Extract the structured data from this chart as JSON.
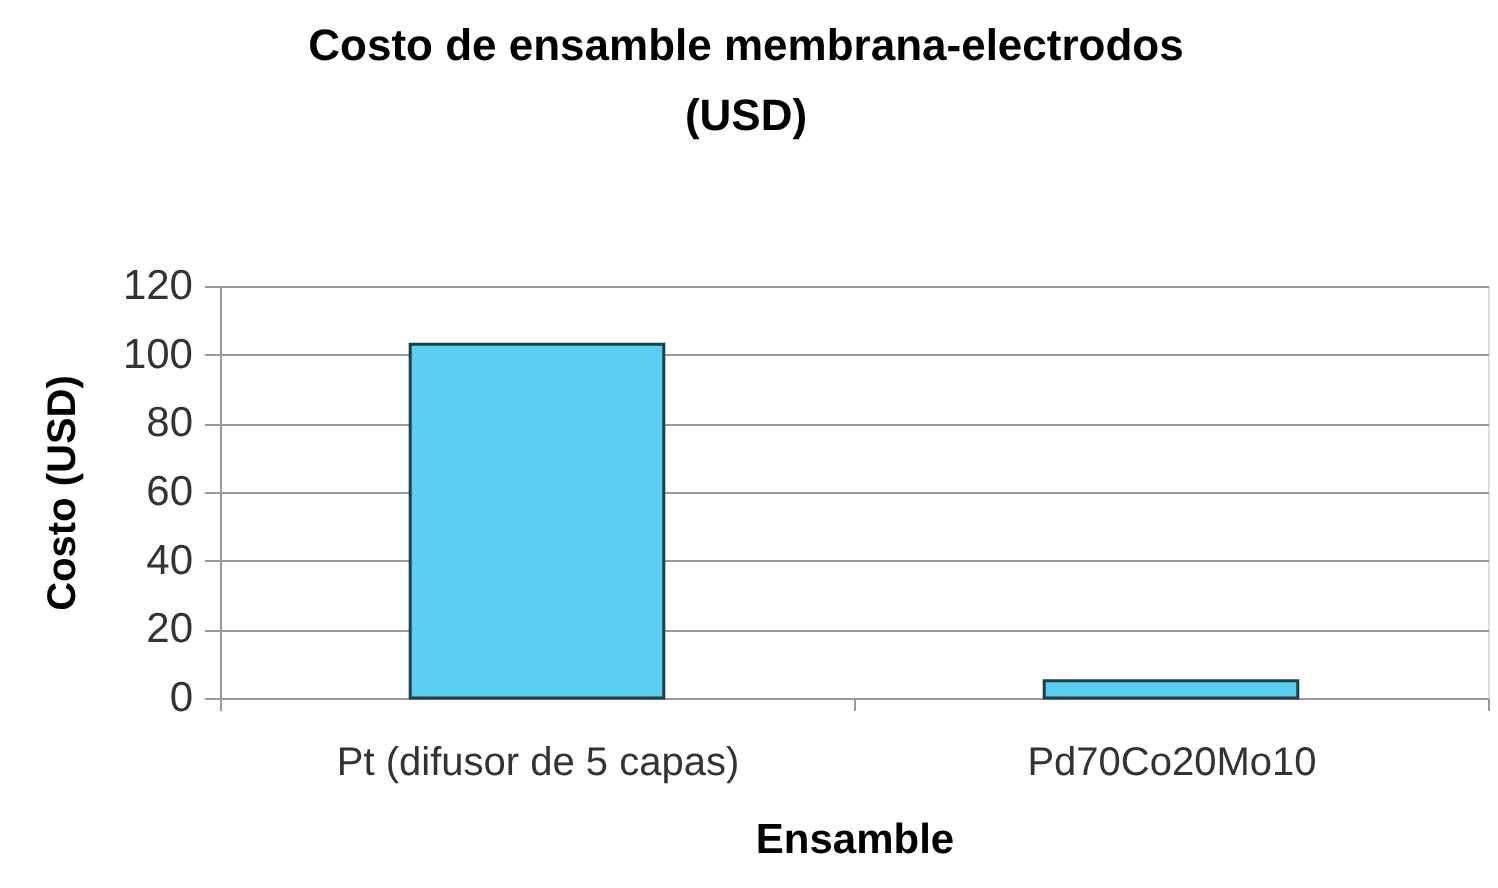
{
  "chart_data": {
    "type": "bar",
    "title": "Costo de ensamble membrana-electrodos (USD)",
    "xlabel": "Ensamble",
    "ylabel": "Costo (USD)",
    "categories": [
      "Pt (difusor de 5 capas)",
      "Pd70Co20Mo10"
    ],
    "values": [
      103,
      5
    ],
    "color": "#5bcdf0",
    "ylim": [
      0,
      120
    ],
    "yticks": [
      0,
      20,
      40,
      60,
      80,
      100,
      120
    ],
    "grid": "y"
  }
}
